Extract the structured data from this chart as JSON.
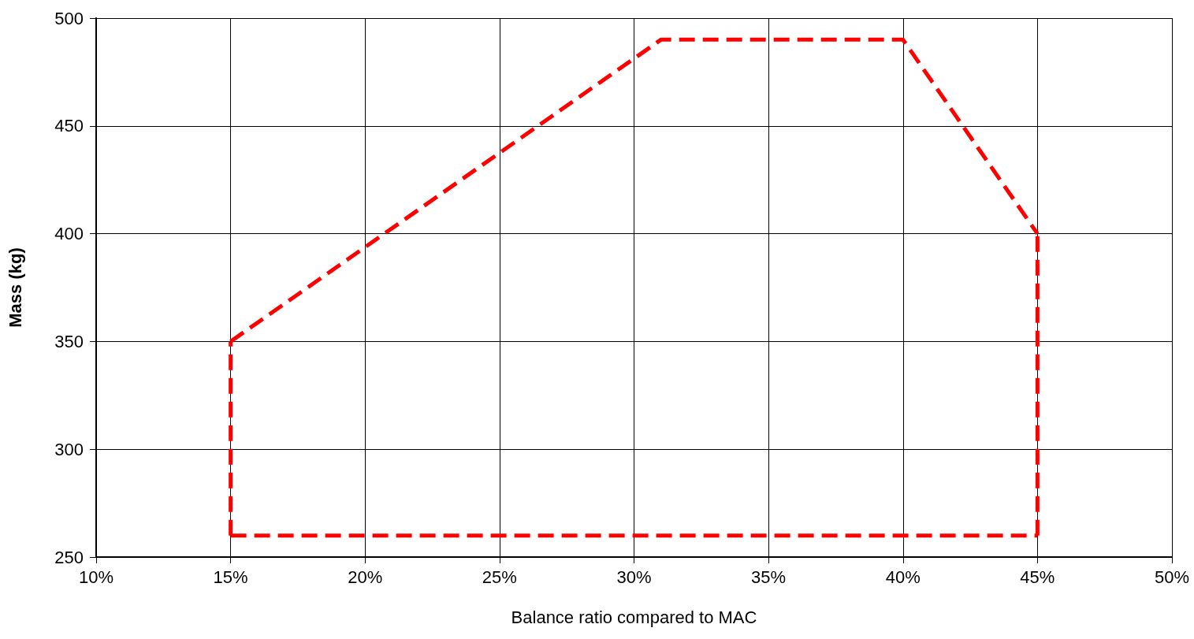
{
  "chart_data": {
    "type": "line",
    "xlabel": "Balance ratio compared to MAC",
    "ylabel": "Mass (kg)",
    "series": [
      {
        "color": "#ff0000",
        "x": [
          15,
          31,
          40,
          45
        ],
        "values": [
          350,
          490,
          490,
          400
        ]
      },
      {
        "color": "#ff0000",
        "x": [
          15,
          45
        ],
        "values": [
          260,
          260
        ]
      },
      {
        "color": "#ff0000",
        "x": [
          15,
          15
        ],
        "values": [
          260,
          350
        ]
      },
      {
        "color": "#ff0000",
        "x": [
          45,
          45
        ],
        "values": [
          260,
          400
        ]
      }
    ],
    "xlim": [
      10,
      50
    ],
    "xticks": [
      {
        "value": 10,
        "label": "10%"
      },
      {
        "value": 15,
        "label": "15%"
      },
      {
        "value": 20,
        "label": "20%"
      },
      {
        "value": 25,
        "label": "25%"
      },
      {
        "value": 30,
        "label": "30%"
      },
      {
        "value": 35,
        "label": "35%"
      },
      {
        "value": 40,
        "label": "40%"
      },
      {
        "value": 45,
        "label": "45%"
      },
      {
        "value": 50,
        "label": "50%"
      }
    ],
    "ylim": [
      250,
      500
    ],
    "yticks": [
      250,
      300,
      350,
      400,
      450,
      500
    ],
    "grid": true,
    "marker": "none",
    "line_style": "dashed"
  }
}
